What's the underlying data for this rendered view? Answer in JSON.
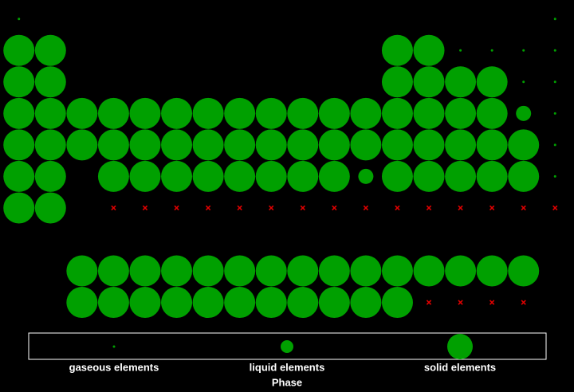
{
  "chart_data": {
    "type": "scatter",
    "xlim": [
      0.4,
      18.6
    ],
    "ylim": [
      11.2,
      0.4
    ],
    "legend_title": "Phase",
    "legend_position": "bottom",
    "series": [
      {
        "name": "gaseous elements",
        "color": "#00a000",
        "marker": "circle",
        "x": [
          1,
          18,
          15,
          16,
          17,
          18,
          17,
          18,
          18,
          18,
          18
        ],
        "y": [
          1,
          1,
          2,
          2,
          2,
          2,
          3,
          3,
          4,
          5,
          6
        ]
      },
      {
        "name": "liquid elements",
        "color": "#00a000",
        "marker": "circle",
        "x": [
          17,
          12
        ],
        "y": [
          4,
          6
        ]
      },
      {
        "name": "solid elements",
        "color": "#00a000",
        "marker": "circle",
        "x": [
          1,
          2,
          13,
          14,
          1,
          2,
          13,
          14,
          15,
          16,
          1,
          2,
          3,
          4,
          5,
          6,
          7,
          8,
          9,
          10,
          11,
          12,
          13,
          14,
          15,
          16,
          1,
          2,
          3,
          4,
          5,
          6,
          7,
          8,
          9,
          10,
          11,
          12,
          13,
          14,
          15,
          16,
          17,
          1,
          2,
          4,
          5,
          6,
          7,
          8,
          9,
          10,
          11,
          13,
          14,
          15,
          16,
          17,
          1,
          2,
          3,
          4,
          5,
          6,
          7,
          8,
          9,
          10,
          11,
          12,
          13,
          14,
          15,
          16,
          17,
          3,
          4,
          5,
          6,
          7,
          8,
          9,
          10,
          11,
          12,
          13
        ],
        "y": [
          2,
          2,
          2,
          2,
          3,
          3,
          3,
          3,
          3,
          3,
          4,
          4,
          4,
          4,
          4,
          4,
          4,
          4,
          4,
          4,
          4,
          4,
          4,
          4,
          4,
          4,
          5,
          5,
          5,
          5,
          5,
          5,
          5,
          5,
          5,
          5,
          5,
          5,
          5,
          5,
          5,
          5,
          5,
          6,
          6,
          6,
          6,
          6,
          6,
          6,
          6,
          6,
          6,
          6,
          6,
          6,
          6,
          6,
          7,
          7,
          9,
          9,
          9,
          9,
          9,
          9,
          9,
          9,
          9,
          9,
          9,
          9,
          9,
          9,
          9,
          10,
          10,
          10,
          10,
          10,
          10,
          10,
          10,
          10,
          10,
          10
        ]
      },
      {
        "color": "#e00000",
        "marker": "x",
        "x": [
          4,
          5,
          6,
          7,
          8,
          9,
          10,
          11,
          12,
          13,
          14,
          15,
          16,
          17,
          18,
          14,
          15,
          16,
          17
        ],
        "y": [
          7,
          7,
          7,
          7,
          7,
          7,
          7,
          7,
          7,
          7,
          7,
          7,
          7,
          7,
          7,
          10,
          10,
          10,
          10
        ]
      }
    ]
  }
}
